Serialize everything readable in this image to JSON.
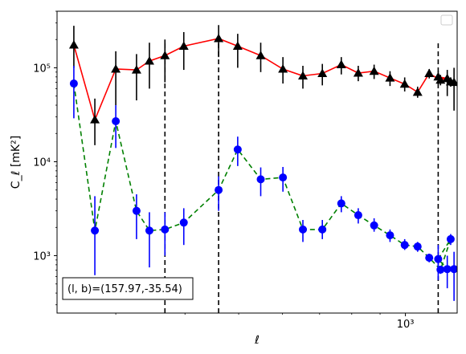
{
  "chart_data": {
    "type": "scatter",
    "xscale": "log",
    "yscale": "log",
    "xlim": [
      235,
      1240
    ],
    "ylim": [
      245,
      400000
    ],
    "xlabel": "ℓ",
    "ylabel": "C_ℓ  [mK²]",
    "x_ticks": [
      {
        "value": 1000,
        "label": "10³"
      }
    ],
    "y_ticks": [
      {
        "value": 1000,
        "label": "10³"
      },
      {
        "value": 10000,
        "label": "10⁴"
      },
      {
        "value": 100000,
        "label": "10⁵"
      }
    ],
    "grid": false,
    "legend": "top-right (empty)",
    "annotation": "(l, b)=(157.97,-35.54)",
    "vlines": [
      {
        "x": 368,
        "y_from": 245,
        "y_to": 185000
      },
      {
        "x": 460,
        "y_from": 245,
        "y_to": 185000
      },
      {
        "x": 1146,
        "y_from": 245,
        "y_to": 190000
      }
    ],
    "series": [
      {
        "marker": "triangle",
        "color": "#000000",
        "line_color": "#ff0000",
        "line_style": "solid",
        "points": [
          {
            "x": 252,
            "y": 175000,
            "lo": 100000,
            "hi": 280000
          },
          {
            "x": 275,
            "y": 28000,
            "lo": 15000,
            "hi": 47000
          },
          {
            "x": 300,
            "y": 97000,
            "lo": 40000,
            "hi": 150000
          },
          {
            "x": 327,
            "y": 95000,
            "lo": 45000,
            "hi": 140000
          },
          {
            "x": 345,
            "y": 118000,
            "lo": 60000,
            "hi": 185000
          },
          {
            "x": 368,
            "y": 135000,
            "lo": 70000,
            "hi": 200000
          },
          {
            "x": 398,
            "y": 170000,
            "lo": 95000,
            "hi": 240000
          },
          {
            "x": 460,
            "y": 205000,
            "lo": 130000,
            "hi": 285000
          },
          {
            "x": 498,
            "y": 170000,
            "lo": 100000,
            "hi": 230000
          },
          {
            "x": 548,
            "y": 135000,
            "lo": 90000,
            "hi": 185000
          },
          {
            "x": 601,
            "y": 97000,
            "lo": 68000,
            "hi": 130000
          },
          {
            "x": 653,
            "y": 82000,
            "lo": 60000,
            "hi": 105000
          },
          {
            "x": 708,
            "y": 87000,
            "lo": 65000,
            "hi": 110000
          },
          {
            "x": 766,
            "y": 108000,
            "lo": 85000,
            "hi": 130000
          },
          {
            "x": 822,
            "y": 88000,
            "lo": 72000,
            "hi": 105000
          },
          {
            "x": 878,
            "y": 92000,
            "lo": 76000,
            "hi": 108000
          },
          {
            "x": 938,
            "y": 78000,
            "lo": 64000,
            "hi": 92000
          },
          {
            "x": 997,
            "y": 67000,
            "lo": 56000,
            "hi": 79000
          },
          {
            "x": 1052,
            "y": 55000,
            "lo": 48000,
            "hi": 63000
          },
          {
            "x": 1104,
            "y": 87000,
            "lo": 77000,
            "hi": 97000
          },
          {
            "x": 1157,
            "y": 74000,
            "lo": 65000,
            "hi": 84000
          },
          {
            "x": 1207,
            "y": 71000,
            "lo": 63000,
            "hi": 79000
          },
          {
            "x": 1146,
            "y": 80000,
            "lo": 68000,
            "hi": 92000
          },
          {
            "x": 1190,
            "y": 77000,
            "lo": 50000,
            "hi": 95000
          },
          {
            "x": 1224,
            "y": 70000,
            "lo": 35000,
            "hi": 100000
          }
        ]
      },
      {
        "marker": "circle",
        "color": "#0000ff",
        "line_color": "#008000",
        "line_style": "dashed",
        "points": [
          {
            "x": 252,
            "y": 68000,
            "lo": 29000,
            "hi": 105000
          },
          {
            "x": 275,
            "y": 1850,
            "lo": 620,
            "hi": 4300
          },
          {
            "x": 300,
            "y": 27000,
            "lo": 14000,
            "hi": 40000
          },
          {
            "x": 327,
            "y": 3000,
            "lo": 1500,
            "hi": 4500
          },
          {
            "x": 345,
            "y": 1850,
            "lo": 750,
            "hi": 2900
          },
          {
            "x": 368,
            "y": 1900,
            "lo": 1000,
            "hi": 2900
          },
          {
            "x": 398,
            "y": 2250,
            "lo": 1300,
            "hi": 3200
          },
          {
            "x": 460,
            "y": 5000,
            "lo": 3000,
            "hi": 7000
          },
          {
            "x": 498,
            "y": 13500,
            "lo": 9000,
            "hi": 18500
          },
          {
            "x": 548,
            "y": 6500,
            "lo": 4300,
            "hi": 8700
          },
          {
            "x": 601,
            "y": 6800,
            "lo": 4800,
            "hi": 8800
          },
          {
            "x": 653,
            "y": 1900,
            "lo": 1400,
            "hi": 2400
          },
          {
            "x": 708,
            "y": 1900,
            "lo": 1500,
            "hi": 2400
          },
          {
            "x": 766,
            "y": 3600,
            "lo": 2900,
            "hi": 4300
          },
          {
            "x": 822,
            "y": 2700,
            "lo": 2200,
            "hi": 3200
          },
          {
            "x": 878,
            "y": 2100,
            "lo": 1800,
            "hi": 2500
          },
          {
            "x": 938,
            "y": 1650,
            "lo": 1400,
            "hi": 1900
          },
          {
            "x": 997,
            "y": 1300,
            "lo": 1150,
            "hi": 1500
          },
          {
            "x": 1052,
            "y": 1250,
            "lo": 1100,
            "hi": 1400
          },
          {
            "x": 1104,
            "y": 950,
            "lo": 850,
            "hi": 1050
          },
          {
            "x": 1157,
            "y": 710,
            "lo": 640,
            "hi": 780
          },
          {
            "x": 1207,
            "y": 1500,
            "lo": 1300,
            "hi": 1700
          },
          {
            "x": 1146,
            "y": 920,
            "lo": 550,
            "hi": 1300
          },
          {
            "x": 1190,
            "y": 720,
            "lo": 450,
            "hi": 1000
          },
          {
            "x": 1224,
            "y": 720,
            "lo": 330,
            "hi": 1100
          }
        ]
      }
    ]
  }
}
